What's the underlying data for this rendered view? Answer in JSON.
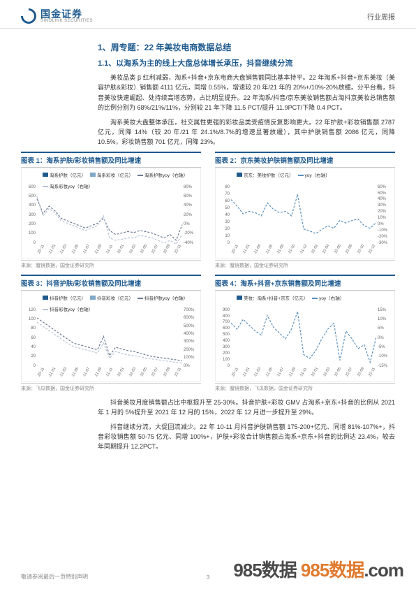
{
  "header": {
    "logo_cn": "国金证券",
    "logo_en": "SINOLINK SECURITIES",
    "right": "行业周报"
  },
  "section_title": "1、周专题：22 年美妆电商数据总结",
  "sub_title": "1.1、以淘系为主的线上大盘总体增长承压，抖音继续分流",
  "para1": "美妆品类 β 红利减弱，淘系+抖音+京东电商大盘销售额同比基本持平。22 年淘系+抖音+京东美妆（美容护肤&彩妆）销售额 4111 亿元，同增 0.55%，增速较 20 年/21 年的 20%+/10%-20%放缓。分平台看，抖音美妆快速崛起、处持续高增态势，占比明显提升。22 年淘系/抖音/京东美妆销售额占淘抖京美妆总销售额的比例分别为 68%/21%/11%，分别较 21 年下降 11.5 PCT/提升 11.9PCT/下降 0.4 PCT。",
  "para2": "淘系美妆大盘整体承压，社交属性更强的彩妆品类受疫情反复影响更大。22 年护肤+彩妆销售额 2787 亿元，同降 14%（较 20 年/21 年 24.1%/8.7%的增速显著放缓），其中护肤销售额 2086 亿元，同降 10.5%，彩妆销售额 701 亿元，同降 23%。",
  "charts": [
    {
      "title": "图表 1：淘系护肤/彩妆销售额及同比增速",
      "source": "来源：魔镜数据，国金证券研究所",
      "legend": [
        {
          "label": "淘系护肤（亿元）",
          "color": "#1e5a8e",
          "type": "bar"
        },
        {
          "label": "淘系彩妆（亿元）",
          "color": "#7fa8c9",
          "type": "bar"
        },
        {
          "label": "淘系护肤yoy（右轴）",
          "color": "#6b7a8f",
          "type": "line"
        },
        {
          "label": "淘系彩妆yoy（右轴）",
          "color": "#b8c4d4",
          "type": "line"
        }
      ],
      "y_left": {
        "max": 600,
        "min": 0,
        "step": 100,
        "unit": ""
      },
      "y_right": {
        "max": 80,
        "min": -40,
        "step": 20,
        "unit": "%"
      },
      "x_labels": [
        "20-11",
        "21-01",
        "21-03",
        "21-05",
        "21-07",
        "21-09",
        "21-11",
        "22-01",
        "22-03",
        "22-05",
        "22-07",
        "22-09",
        "22-11"
      ],
      "bars1": [
        460,
        140,
        120,
        130,
        150,
        150,
        130,
        155,
        155,
        130,
        160,
        500,
        120,
        110,
        100,
        110,
        125,
        135,
        115,
        130,
        125,
        100,
        130,
        150,
        470
      ],
      "bars1_color": "#1e5a8e",
      "bars2": [
        120,
        55,
        45,
        48,
        55,
        58,
        50,
        60,
        65,
        52,
        70,
        170,
        48,
        42,
        38,
        42,
        48,
        52,
        44,
        50,
        48,
        38,
        50,
        58,
        140
      ],
      "bars2_color": "#7fa8c9",
      "line1": [
        55,
        25,
        40,
        30,
        15,
        10,
        5,
        0,
        -5,
        0,
        5,
        15,
        -10,
        -18,
        -15,
        -12,
        -14,
        -10,
        -12,
        -15,
        -20,
        -25,
        -18,
        -30,
        2
      ],
      "line1_color": "#6b7a8f",
      "line2": [
        60,
        20,
        35,
        25,
        10,
        5,
        0,
        -5,
        -10,
        -5,
        0,
        20,
        -25,
        -30,
        -28,
        -25,
        -25,
        -20,
        -22,
        -25,
        -30,
        -35,
        -30,
        -38,
        -18
      ],
      "line2_color": "#b8c4d4"
    },
    {
      "title": "图表 2：京东美妆护肤销售额及同比增速",
      "source": "来源：魔镜数据，国金证券研究所",
      "legend": [
        {
          "label": "京东：美妆护肤（亿元）",
          "color": "#1e5a8e",
          "type": "bar"
        },
        {
          "label": "yoy（右轴）",
          "color": "#5b8fb9",
          "type": "line"
        }
      ],
      "y_left": {
        "max": 80,
        "min": 0,
        "step": 10,
        "unit": ""
      },
      "y_right": {
        "max": 60,
        "min": -30,
        "step": 10,
        "unit": "%"
      },
      "x_labels": [
        "20-11",
        "21-01",
        "21-04",
        "21-06",
        "21-08",
        "21-10",
        "21-12",
        "22-02",
        "22-04",
        "22-06",
        "22-08",
        "22-10",
        "22-12"
      ],
      "bars1": [
        52,
        25,
        23,
        28,
        24,
        26,
        65,
        24,
        28,
        30,
        26,
        50,
        28,
        22,
        20,
        26,
        24,
        25,
        70,
        25,
        30,
        32,
        26,
        48,
        30
      ],
      "bars1_color": "#1e5a8e",
      "line1": [
        40,
        30,
        18,
        22,
        20,
        15,
        35,
        25,
        20,
        22,
        15,
        48,
        -5,
        -8,
        -12,
        -6,
        0,
        -4,
        8,
        4,
        8,
        10,
        0,
        -4,
        5
      ],
      "line1_color": "#5b8fb9"
    },
    {
      "title": "图表 3：抖音护肤/彩妆销售额及同比增速",
      "source": "来源：飞瓜数据，国金证券研究所",
      "legend": [
        {
          "label": "抖音护肤（亿元）",
          "color": "#1e5a8e",
          "type": "bar"
        },
        {
          "label": "抖音彩妆（亿元）",
          "color": "#7fa8c9",
          "type": "bar"
        },
        {
          "label": "抖音护肤yoy（右轴）",
          "color": "#6b7a8f",
          "type": "line"
        },
        {
          "label": "抖音彩妆yoy（右轴）",
          "color": "#b8c4d4",
          "type": "line"
        }
      ],
      "y_left": {
        "max": 120,
        "min": 0,
        "step": 20,
        "unit": ""
      },
      "y_right": {
        "max": 700,
        "min": 0,
        "step": 100,
        "unit": "%"
      },
      "x_labels": [
        "20-11",
        "21-01",
        "21-03",
        "21-05",
        "21-07",
        "21-09",
        "21-11",
        "22-01",
        "22-03",
        "22-05",
        "22-07",
        "22-09",
        "22-11"
      ],
      "bars1": [
        12,
        8,
        9,
        11,
        14,
        17,
        20,
        24,
        28,
        32,
        38,
        58,
        30,
        28,
        30,
        35,
        42,
        48,
        52,
        58,
        62,
        58,
        70,
        95,
        110
      ],
      "bars1_color": "#1e5a8e",
      "bars2": [
        6,
        4,
        4,
        5,
        6,
        7,
        8,
        10,
        12,
        14,
        16,
        22,
        12,
        11,
        12,
        14,
        16,
        18,
        20,
        22,
        24,
        22,
        26,
        34,
        38
      ],
      "bars2_color": "#7fa8c9",
      "line1": [
        600,
        550,
        500,
        450,
        400,
        350,
        300,
        280,
        260,
        240,
        220,
        380,
        150,
        250,
        230,
        210,
        200,
        180,
        160,
        140,
        130,
        120,
        110,
        100,
        90
      ],
      "line1_color": "#6b7a8f",
      "line2": [
        550,
        500,
        450,
        400,
        350,
        300,
        260,
        240,
        220,
        200,
        180,
        300,
        120,
        200,
        180,
        160,
        150,
        140,
        120,
        110,
        100,
        90,
        80,
        70,
        60
      ],
      "line2_color": "#b8c4d4"
    },
    {
      "title": "图表 4：淘系+抖音+京东销售额及同比增速",
      "source": "来源：魔镜数据，飞瓜数据，国金证券研究所",
      "legend": [
        {
          "label": "美妆：淘系+抖音+京东（亿元）",
          "color": "#1e5a8e",
          "type": "bar"
        },
        {
          "label": "yoy（右轴）",
          "color": "#5b8fb9",
          "type": "line"
        }
      ],
      "y_left": {
        "max": 900,
        "min": 0,
        "step": 100,
        "unit": ""
      },
      "y_right": {
        "max": 15,
        "min": -15,
        "step": 5,
        "unit": "%"
      },
      "x_labels": [
        "20-11",
        "21-01",
        "21-03",
        "21-05",
        "21-07",
        "21-09",
        "21-11",
        "22-01",
        "22-03",
        "22-05",
        "22-07",
        "22-09",
        "22-11"
      ],
      "bars1": [
        620,
        220,
        200,
        210,
        230,
        240,
        280,
        260,
        265,
        240,
        300,
        800,
        220,
        200,
        190,
        210,
        240,
        260,
        250,
        270,
        265,
        230,
        290,
        340,
        810
      ],
      "bars1_color": "#1e5a8e",
      "line1": [
        8,
        5,
        10,
        7,
        4,
        2,
        12,
        6,
        3,
        0,
        5,
        14,
        -8,
        -10,
        -6,
        0,
        5,
        8,
        -11,
        4,
        0,
        -5,
        -3,
        -12,
        1
      ],
      "line1_color": "#5b8fb9"
    }
  ],
  "para3": "抖音美妆月度销售额占比中枢提升至 25-30%。抖音护肤+彩妆 GMV 占淘系+京东+抖音的比例从 2021 年 1 月的 5%提升至 2021 年 12 月的 15%，2022 年 12 月进一步提升至 29%。",
  "para4": "抖音继续分流，大促回流减少。22 年 10-11 月抖音护肤销售额 175-200+亿元、同增 81%-107%+，抖音彩妆销售额 50-75 亿元、同增 100%+，护肤+彩妆合计销售额占淘系+京东+抖音的比例达 23.4%，较去年同期提升 12.2PCT。",
  "footer": {
    "left": "敬请参阅最后一页特别声明",
    "page": "3"
  },
  "watermark": {
    "p1": "985数据 ",
    "p2": "985数据",
    "p3": ".com"
  }
}
